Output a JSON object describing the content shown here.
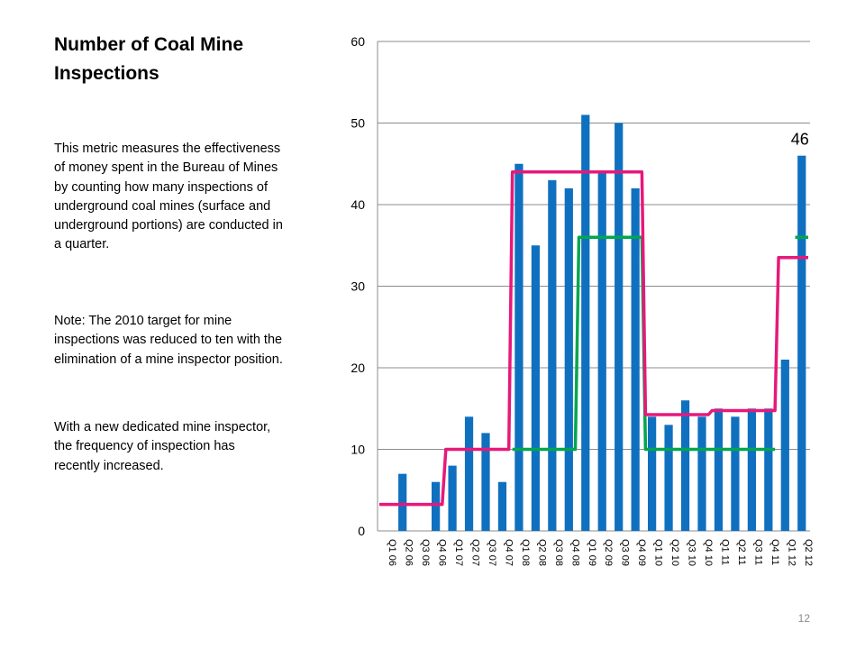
{
  "slide": {
    "title": "Number of Coal Mine Inspections",
    "paragraphs": [
      "This  metric measures  the effectiveness of money spent in the Bureau of Mines by counting how many inspections of underground coal mines (surface and underground portions) are conducted in a quarter.",
      "Note:  The 2010 target for mine inspections was reduced to ten with the elimination of a mine inspector position.",
      "With a new dedicated mine inspector, the frequency of inspection has recently increased."
    ],
    "page_number": "12"
  },
  "chart_data": {
    "type": "bar",
    "categories": [
      "Q1 06",
      "Q2 06",
      "Q3 06",
      "Q4 06",
      "Q1 07",
      "Q2 07",
      "Q3 07",
      "Q4 07",
      "Q1 08",
      "Q2 08",
      "Q3 08",
      "Q4 08",
      "Q1 09",
      "Q2 09",
      "Q3 09",
      "Q4 09",
      "Q1 10",
      "Q2 10",
      "Q3 10",
      "Q4 10",
      "Q1 11",
      "Q2 11",
      "Q3 11",
      "Q4 11",
      "Q1 12",
      "Q2 12"
    ],
    "series": [
      {
        "type": "bar",
        "color": "#1070c0",
        "values": [
          0,
          7,
          0,
          6,
          8,
          14,
          12,
          6,
          45,
          35,
          43,
          42,
          51,
          44,
          50,
          42,
          14,
          13,
          16,
          14,
          15,
          14,
          15,
          15,
          21,
          46
        ]
      },
      {
        "type": "line",
        "color": "#00a650",
        "values": [
          null,
          null,
          null,
          null,
          null,
          null,
          null,
          null,
          10,
          10,
          10,
          10,
          36,
          36,
          36,
          36,
          10,
          10,
          10,
          10,
          10,
          10,
          10,
          10,
          null,
          36
        ]
      },
      {
        "type": "line",
        "color": "#e6197a",
        "values": [
          3.25,
          3.25,
          3.25,
          3.25,
          10,
          10,
          10,
          10,
          44,
          44,
          44,
          44,
          44,
          44,
          44,
          44,
          14.25,
          14.25,
          14.25,
          14.25,
          14.75,
          14.75,
          14.75,
          14.75,
          33.5,
          33.5
        ]
      }
    ],
    "ylim": [
      0,
      60
    ],
    "yticks": [
      0,
      10,
      20,
      30,
      40,
      50,
      60
    ],
    "grid": true,
    "data_labels": [
      {
        "category": "Q2 12",
        "text": "46"
      }
    ]
  }
}
